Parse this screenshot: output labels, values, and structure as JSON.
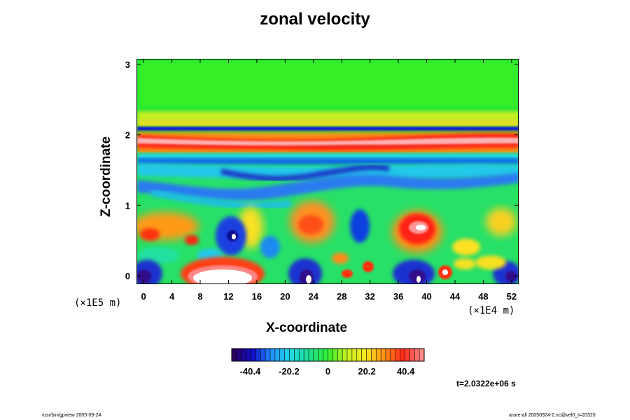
{
  "chart_data": {
    "type": "heatmap",
    "title": "zonal velocity",
    "xlabel": "X-coordinate",
    "ylabel": "Z-coordinate",
    "x_ticks": [
      "0",
      "4",
      "8",
      "12",
      "16",
      "20",
      "24",
      "28",
      "32",
      "36",
      "40",
      "44",
      "48",
      "52"
    ],
    "y_ticks": [
      "0",
      "1",
      "2",
      "3"
    ],
    "x_scale_note": "(×1E4 m)",
    "y_scale_note": "(×1E5 m)",
    "xlim": [
      -1,
      53
    ],
    "ylim": [
      -0.12,
      3.08
    ],
    "colorbar": {
      "ticks": [
        "-40.4",
        "-20.2",
        "0",
        "20.2",
        "40.4"
      ],
      "range": [
        -50,
        50
      ],
      "colors": [
        "#2a0060",
        "#1010c8",
        "#2090ff",
        "#20d8e8",
        "#20e090",
        "#30f030",
        "#c8f020",
        "#f8e820",
        "#ff9018",
        "#ff2818",
        "#ff8888"
      ]
    },
    "annotation": "t=2.0322e+06 s",
    "features": [
      {
        "name": "upper jet",
        "x": [
          0,
          52
        ],
        "z": 1.9,
        "value": 48
      },
      {
        "name": "lower max",
        "x": [
          8,
          17
        ],
        "z": 0.08,
        "value": 60
      },
      {
        "name": "lower max",
        "x": [
          36,
          42
        ],
        "z": 0.65,
        "value": 50
      },
      {
        "name": "lower min",
        "x": [
          13,
          14
        ],
        "z": 0.55,
        "value": -45
      },
      {
        "name": "lower min",
        "x": [
          21,
          24
        ],
        "z": 0.0,
        "value": -45
      },
      {
        "name": "lower min",
        "x": [
          37,
          40
        ],
        "z": 0.05,
        "value": -45
      }
    ]
  },
  "footer": {
    "left_note": "/usr/bin/gpview 2005-09-24",
    "right_note": "arare-all 20050924-2.nc@vel0_t=20320"
  }
}
